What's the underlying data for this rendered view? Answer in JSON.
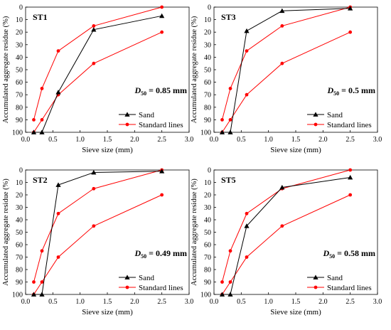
{
  "chart_data": [
    {
      "type": "line",
      "panel_label": "ST1",
      "annotation": {
        "prefix": "D",
        "subscript": "50",
        "rest": " = 0.85 mm"
      },
      "xlabel": "Sieve size (mm)",
      "ylabel": "Accumulated aggregate residue (%)",
      "xlim": [
        0,
        3.0
      ],
      "ylim": [
        0,
        100
      ],
      "y_inverted": true,
      "xticks": [
        "0.0",
        "0.5",
        "1.0",
        "1.5",
        "2.0",
        "2.5",
        "3.0"
      ],
      "yticks": [
        "0",
        "10",
        "20",
        "30",
        "40",
        "50",
        "60",
        "70",
        "80",
        "90",
        "100"
      ],
      "legend_position": "lower-right",
      "series": [
        {
          "name": "Sand",
          "color": "#000000",
          "marker": "triangle",
          "x": [
            0.15,
            0.3,
            0.6,
            1.25,
            2.5
          ],
          "y": [
            100,
            100,
            68,
            18,
            7
          ]
        },
        {
          "name": "Standard lines",
          "color": "#ff0000",
          "marker": "circle",
          "x": [
            0.15,
            0.3,
            0.6,
            1.25,
            2.5
          ],
          "y": [
            90,
            65,
            35,
            15,
            0
          ]
        },
        {
          "name": "",
          "color": "#ff0000",
          "marker": "circle",
          "x": [
            0.15,
            0.3,
            0.6,
            1.25,
            2.5
          ],
          "y": [
            100,
            90,
            70,
            45,
            20
          ]
        }
      ]
    },
    {
      "type": "line",
      "panel_label": "ST3",
      "annotation": {
        "prefix": "D",
        "subscript": "50",
        "rest": " = 0.5 mm"
      },
      "xlabel": "Sieve size (mm)",
      "ylabel": "Accumulated aggregate residue (%)",
      "xlim": [
        0,
        3.0
      ],
      "ylim": [
        0,
        100
      ],
      "y_inverted": true,
      "xticks": [
        "0.0",
        "0.5",
        "1.0",
        "1.5",
        "2.0",
        "2.5",
        "3.0"
      ],
      "yticks": [
        "0",
        "10",
        "20",
        "30",
        "40",
        "50",
        "60",
        "70",
        "80",
        "90",
        "100"
      ],
      "legend_position": "lower-right",
      "series": [
        {
          "name": "Sand",
          "color": "#000000",
          "marker": "triangle",
          "x": [
            0.15,
            0.3,
            0.6,
            1.25,
            2.5
          ],
          "y": [
            100,
            100,
            19,
            3,
            1
          ]
        },
        {
          "name": "Standard lines",
          "color": "#ff0000",
          "marker": "circle",
          "x": [
            0.15,
            0.3,
            0.6,
            1.25,
            2.5
          ],
          "y": [
            90,
            65,
            35,
            15,
            0
          ]
        },
        {
          "name": "",
          "color": "#ff0000",
          "marker": "circle",
          "x": [
            0.15,
            0.3,
            0.6,
            1.25,
            2.5
          ],
          "y": [
            100,
            90,
            70,
            45,
            20
          ]
        }
      ]
    },
    {
      "type": "line",
      "panel_label": "ST2",
      "annotation": {
        "prefix": "D",
        "subscript": "50",
        "rest": " = 0.49 mm"
      },
      "xlabel": "Sieve size (mm)",
      "ylabel": "Accumulated aggregate residue (%)",
      "xlim": [
        0,
        3.0
      ],
      "ylim": [
        0,
        100
      ],
      "y_inverted": true,
      "xticks": [
        "0.0",
        "0.5",
        "1.0",
        "1.5",
        "2.0",
        "2.5",
        "3.0"
      ],
      "yticks": [
        "0",
        "10",
        "20",
        "30",
        "40",
        "50",
        "60",
        "70",
        "80",
        "90",
        "100"
      ],
      "legend_position": "lower-right",
      "series": [
        {
          "name": "Sand",
          "color": "#000000",
          "marker": "triangle",
          "x": [
            0.15,
            0.3,
            0.6,
            1.25,
            2.5
          ],
          "y": [
            100,
            100,
            12,
            2,
            1
          ]
        },
        {
          "name": "Standard lines",
          "color": "#ff0000",
          "marker": "circle",
          "x": [
            0.15,
            0.3,
            0.6,
            1.25,
            2.5
          ],
          "y": [
            90,
            65,
            35,
            15,
            0
          ]
        },
        {
          "name": "",
          "color": "#ff0000",
          "marker": "circle",
          "x": [
            0.15,
            0.3,
            0.6,
            1.25,
            2.5
          ],
          "y": [
            100,
            90,
            70,
            45,
            20
          ]
        }
      ]
    },
    {
      "type": "line",
      "panel_label": "ST5",
      "annotation": {
        "prefix": "D",
        "subscript": "50",
        "rest": " = 0.58 mm"
      },
      "xlabel": "Sieve size (mm)",
      "ylabel": "Accumulated aggregate residue (%)",
      "xlim": [
        0,
        3.0
      ],
      "ylim": [
        0,
        100
      ],
      "y_inverted": true,
      "xticks": [
        "0.0",
        "0.5",
        "1.0",
        "1.5",
        "2.0",
        "2.5",
        "3.0"
      ],
      "yticks": [
        "0",
        "10",
        "20",
        "30",
        "40",
        "50",
        "60",
        "70",
        "80",
        "90",
        "100"
      ],
      "legend_position": "lower-right",
      "series": [
        {
          "name": "Sand",
          "color": "#000000",
          "marker": "triangle",
          "x": [
            0.15,
            0.3,
            0.6,
            1.25,
            2.5
          ],
          "y": [
            100,
            100,
            45,
            14,
            6
          ]
        },
        {
          "name": "Standard lines",
          "color": "#ff0000",
          "marker": "circle",
          "x": [
            0.15,
            0.3,
            0.6,
            1.25,
            2.5
          ],
          "y": [
            90,
            65,
            35,
            15,
            0
          ]
        },
        {
          "name": "",
          "color": "#ff0000",
          "marker": "circle",
          "x": [
            0.15,
            0.3,
            0.6,
            1.25,
            2.5
          ],
          "y": [
            100,
            90,
            70,
            45,
            20
          ]
        }
      ]
    }
  ]
}
